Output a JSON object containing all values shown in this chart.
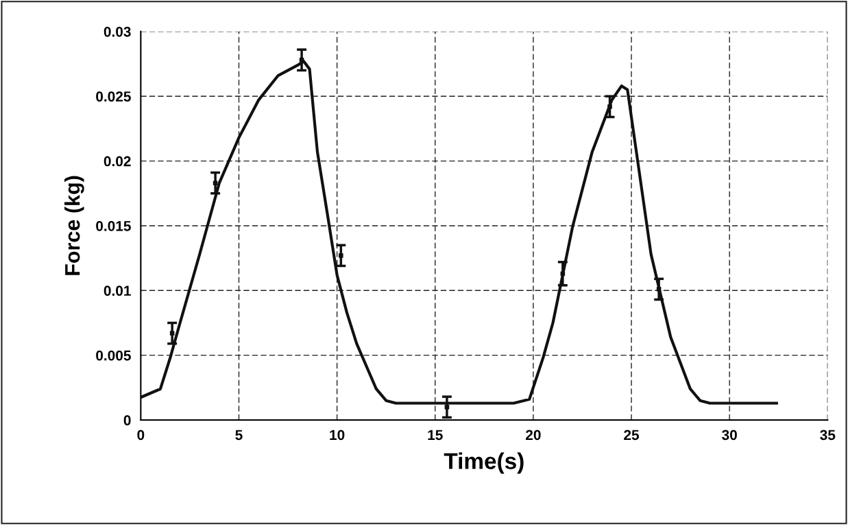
{
  "chart_data": {
    "type": "line",
    "xlabel": "Time(s)",
    "ylabel": "Force (kg)",
    "xlim": [
      0,
      35
    ],
    "xticks": [
      0,
      5,
      10,
      15,
      20,
      25,
      30,
      35
    ],
    "ylim": [
      0,
      0.03
    ],
    "yticks": [
      0,
      0.005,
      0.01,
      0.015,
      0.02,
      0.025,
      0.03
    ],
    "grid": true,
    "line_style": "solid",
    "series": [
      {
        "color": "#111111",
        "marker": "none",
        "x": [
          0,
          1,
          1.5,
          2,
          3,
          4,
          5,
          6,
          7,
          8,
          8.3,
          8.6,
          9,
          9.5,
          10,
          10.5,
          11,
          12,
          12.5,
          13,
          19,
          19.8,
          20.5,
          21,
          21.5,
          22,
          23,
          24,
          24.5,
          24.8,
          25.5,
          26,
          26.5,
          27,
          28,
          28.5,
          29,
          32.4
        ],
        "values": [
          0.00175,
          0.0024,
          0.0048,
          0.0075,
          0.0128,
          0.0183,
          0.0218,
          0.0247,
          0.0266,
          0.0274,
          0.0277,
          0.0271,
          0.0207,
          0.016,
          0.0112,
          0.0083,
          0.0059,
          0.0024,
          0.0015,
          0.0013,
          0.0013,
          0.0016,
          0.0048,
          0.0075,
          0.0112,
          0.0149,
          0.0207,
          0.0247,
          0.0258,
          0.0255,
          0.0181,
          0.0128,
          0.0096,
          0.0064,
          0.0024,
          0.0015,
          0.0013,
          0.0013
        ]
      },
      {
        "type": "scatter",
        "color": "#111111",
        "marker": "square",
        "x": [
          1.6,
          3.8,
          8.2,
          10.2,
          15.6,
          21.5,
          23.9,
          26.4
        ],
        "values": [
          0.0067,
          0.0183,
          0.0278,
          0.0127,
          0.001,
          0.0113,
          0.0242,
          0.0101
        ],
        "errors": [
          0.0008,
          0.0008,
          0.0008,
          0.0008,
          0.0008,
          0.0009,
          0.0008,
          0.0008
        ]
      }
    ]
  }
}
